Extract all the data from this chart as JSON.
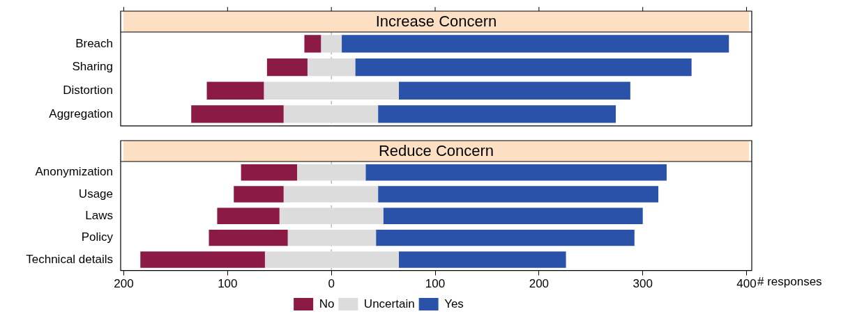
{
  "chart_data": [
    {
      "type": "bar",
      "orientation": "horizontal",
      "title": "Increase Concern",
      "categories": [
        "Breach",
        "Sharing",
        "Distortion",
        "Aggregation"
      ],
      "series": [
        {
          "color": "#8b1a45",
          "base": [
            -26,
            -62,
            -120,
            -135
          ],
          "values": [
            16,
            39,
            55,
            89
          ]
        },
        {
          "color": "#dcdcdc",
          "base": [
            -10,
            -23,
            -65,
            -46
          ],
          "values": [
            20,
            46,
            130,
            91
          ]
        },
        {
          "color": "#2a52a8",
          "base": [
            10,
            23,
            65,
            45
          ],
          "values": [
            373,
            324,
            223,
            229
          ]
        }
      ],
      "xlim": [
        -203,
        405
      ],
      "xticks": [
        {
          "value": -200,
          "label": null
        },
        {
          "value": -100,
          "label": null
        },
        {
          "value": 0,
          "label": null
        },
        {
          "value": 100,
          "label": null
        },
        {
          "value": 200,
          "label": null
        },
        {
          "value": 300,
          "label": null
        },
        {
          "value": 400,
          "label": null
        }
      ],
      "tick_labels": "y",
      "legend": false,
      "grid": false,
      "ref_lines": [
        {
          "axis": "x",
          "value": 0,
          "color": "#9a9a9a",
          "line_style": "dashed"
        }
      ]
    },
    {
      "type": "bar",
      "orientation": "horizontal",
      "title": "Reduce Concern",
      "categories": [
        "Anonymization",
        "Usage",
        "Laws",
        "Policy",
        "Technical details"
      ],
      "series": [
        {
          "name": "No",
          "color": "#8b1a45",
          "base": [
            -87,
            -94,
            -110,
            -118,
            -184
          ],
          "values": [
            54,
            48,
            60,
            76,
            120
          ]
        },
        {
          "name": "Uncertain",
          "color": "#dcdcdc",
          "base": [
            -33,
            -46,
            -50,
            -42,
            -64
          ],
          "values": [
            66,
            91,
            100,
            85,
            129
          ]
        },
        {
          "name": "Yes",
          "color": "#2a52a8",
          "base": [
            33,
            45,
            50,
            43,
            65
          ],
          "values": [
            290,
            270,
            250,
            249,
            161
          ]
        }
      ],
      "xlim": [
        -203,
        405
      ],
      "xticks": [
        {
          "value": -200,
          "label": "200"
        },
        {
          "value": -100,
          "label": "100"
        },
        0,
        100,
        200,
        300,
        400
      ],
      "xlabel": "# responses",
      "legend": "bottom",
      "grid": false,
      "ref_lines": [
        {
          "axis": "x",
          "value": 0,
          "color": "#9a9a9a",
          "line_style": "dashed"
        }
      ]
    }
  ]
}
